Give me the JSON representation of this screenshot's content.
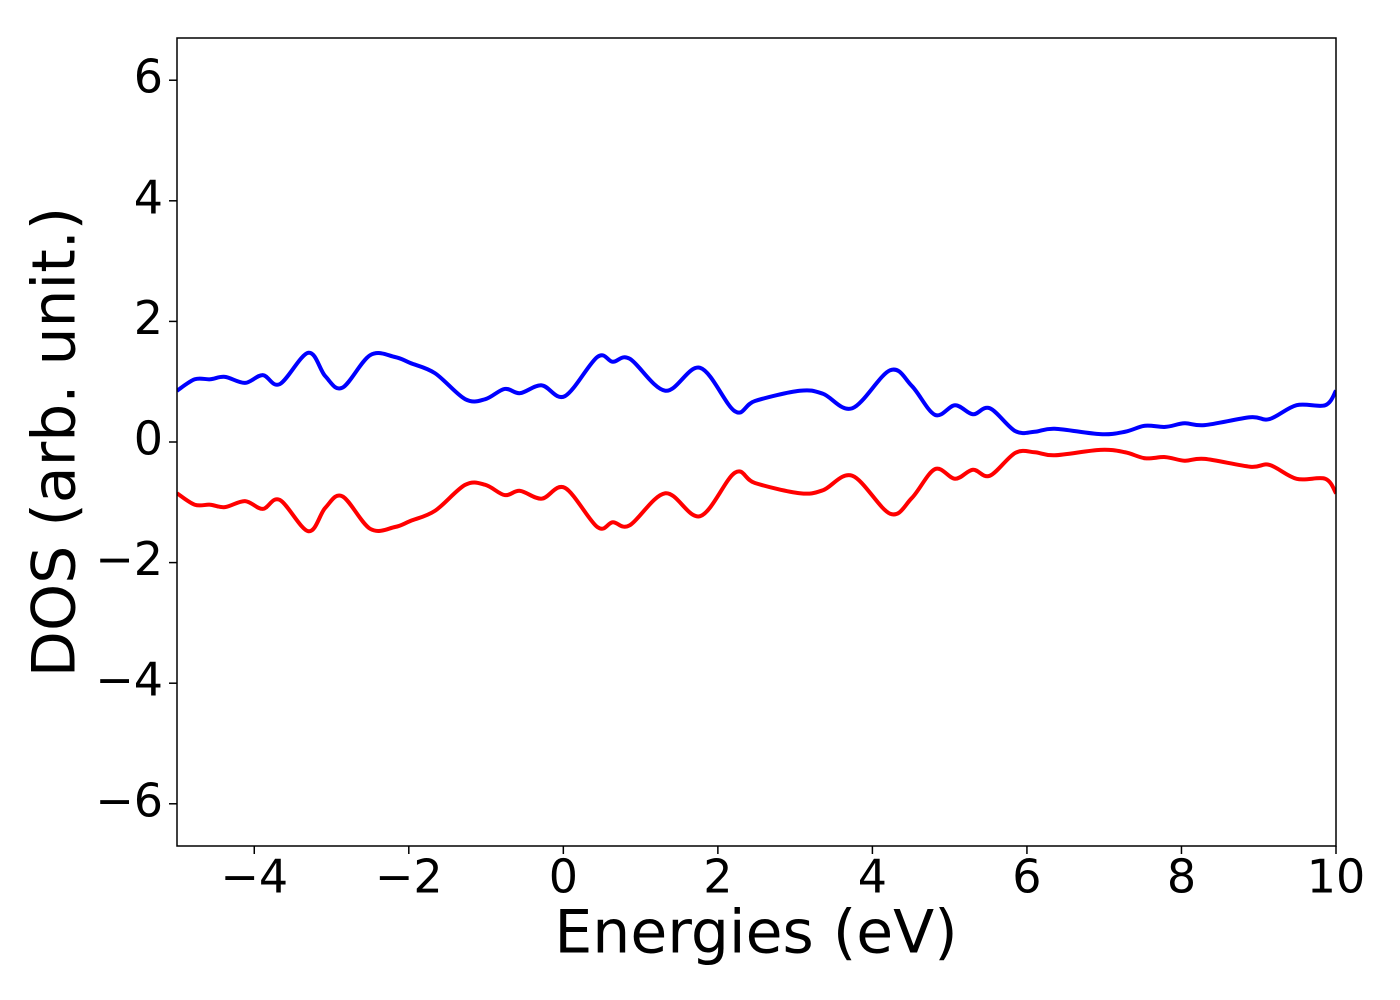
{
  "chart_data": {
    "type": "line",
    "xlabel": "Energies (eV)",
    "ylabel": "DOS (arb. unit.)",
    "x": [
      -5,
      -4.77,
      -4.57,
      -4.38,
      -4.12,
      -3.89,
      -3.67,
      -3.3,
      -3.08,
      -2.86,
      -2.5,
      -2.18,
      -1.98,
      -1.66,
      -1.27,
      -1.01,
      -0.76,
      -0.56,
      -0.28,
      0.02,
      0.44,
      0.64,
      0.86,
      1.32,
      1.77,
      2.22,
      2.48,
      3.06,
      3.36,
      3.74,
      4.23,
      4.51,
      4.81,
      5.07,
      5.3,
      5.52,
      5.85,
      6.1,
      6.36,
      6.95,
      7.27,
      7.53,
      7.79,
      8.04,
      8.3,
      8.89,
      9.14,
      9.49,
      9.86,
      10
    ],
    "series": [
      {
        "color": "#0000ff",
        "values": [
          0.85,
          1.04,
          1.04,
          1.08,
          0.98,
          1.11,
          0.96,
          1.48,
          1.09,
          0.9,
          1.44,
          1.41,
          1.31,
          1.14,
          0.71,
          0.71,
          0.88,
          0.81,
          0.94,
          0.76,
          1.41,
          1.33,
          1.38,
          0.85,
          1.23,
          0.51,
          0.68,
          0.85,
          0.8,
          0.56,
          1.19,
          0.93,
          0.45,
          0.61,
          0.46,
          0.56,
          0.18,
          0.17,
          0.22,
          0.13,
          0.17,
          0.27,
          0.25,
          0.31,
          0.28,
          0.41,
          0.38,
          0.61,
          0.61,
          0.85
        ]
      },
      {
        "color": "#ff0000",
        "values": [
          -0.85,
          -1.04,
          -1.04,
          -1.08,
          -0.98,
          -1.11,
          -0.96,
          -1.48,
          -1.09,
          -0.9,
          -1.44,
          -1.41,
          -1.31,
          -1.14,
          -0.71,
          -0.71,
          -0.88,
          -0.81,
          -0.94,
          -0.76,
          -1.41,
          -1.33,
          -1.38,
          -0.85,
          -1.23,
          -0.51,
          -0.68,
          -0.85,
          -0.8,
          -0.56,
          -1.19,
          -0.93,
          -0.45,
          -0.61,
          -0.46,
          -0.56,
          -0.18,
          -0.17,
          -0.22,
          -0.13,
          -0.17,
          -0.27,
          -0.25,
          -0.31,
          -0.28,
          -0.41,
          -0.38,
          -0.61,
          -0.61,
          -0.85
        ]
      }
    ],
    "xlim": [
      -5,
      10
    ],
    "xticks": [
      {
        "value": -4,
        "label": "−4"
      },
      {
        "value": -2,
        "label": "−2"
      },
      0,
      2,
      4,
      6,
      8,
      10
    ],
    "ylim": [
      -6.7,
      6.7
    ],
    "yticks": [
      {
        "value": -6,
        "label": "−6"
      },
      {
        "value": -4,
        "label": "−4"
      },
      {
        "value": -2,
        "label": "−2"
      },
      0,
      2,
      4,
      6
    ],
    "grid": false
  }
}
